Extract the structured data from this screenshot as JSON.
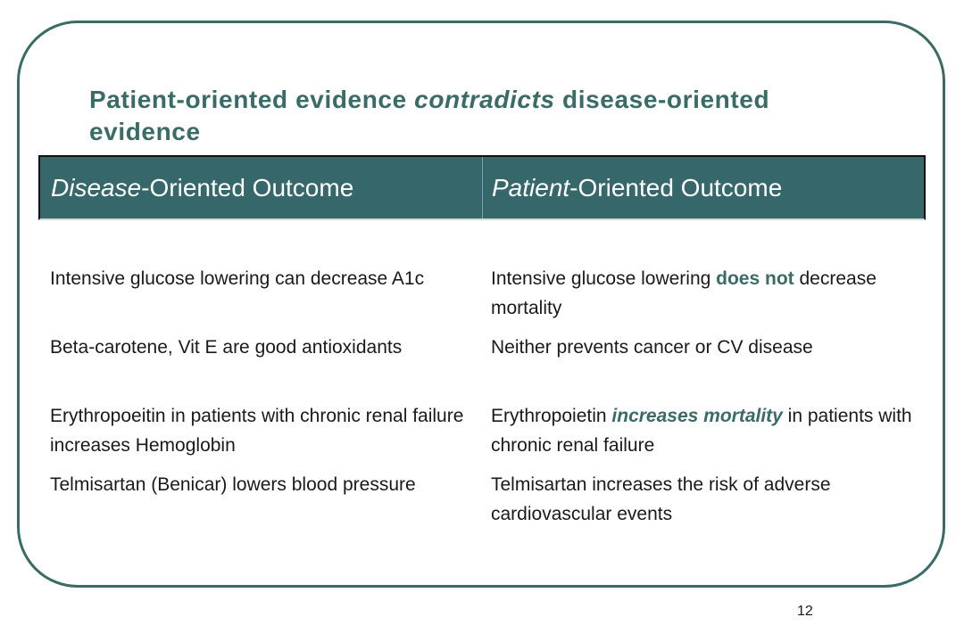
{
  "slide": {
    "title_part1": "Patient-oriented evidence ",
    "title_em": "contradicts",
    "title_part2": " disease-oriented evidence",
    "page_number": "12"
  },
  "header": {
    "left_em": "Disease",
    "left_rest": "-Oriented Outcome",
    "right_em": "Patient",
    "right_rest": "-Oriented Outcome"
  },
  "rows": [
    {
      "left": "Intensive glucose lowering can decrease A1c",
      "right_pre": "Intensive glucose lowering ",
      "right_hl": "does not",
      "right_post": " decrease mortality"
    },
    {
      "left": "Beta-carotene, Vit E are good antioxidants",
      "right": "Neither prevents cancer or CV disease"
    },
    {
      "left": "Erythropoeitin in patients with chronic renal failure increases Hemoglobin",
      "right_pre": "Erythropoietin ",
      "right_hl": "increases mortality",
      "right_post": " in patients with chronic renal failure"
    },
    {
      "left": "Telmisartan (Benicar) lowers blood pressure",
      "right": "Telmisartan increases the risk of adverse cardiovascular events"
    }
  ],
  "colors": {
    "accent": "#3a6b66",
    "header_bg": "#36676a"
  }
}
